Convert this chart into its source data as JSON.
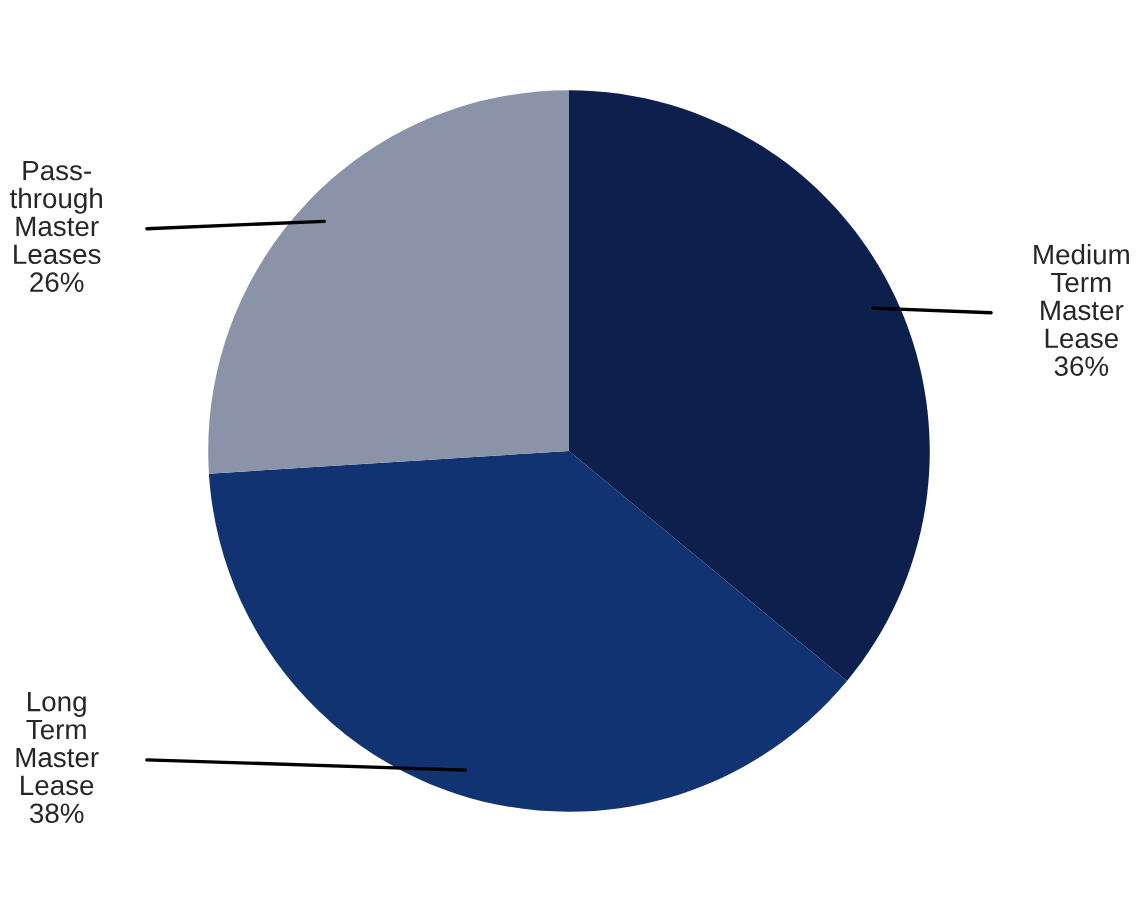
{
  "chart_data": {
    "type": "pie",
    "categories": [
      "Medium\nTerm\nMaster\nLease",
      "Long\nTerm\nMaster\nLease",
      "Pass-\nthrough\nMaster\nLeases"
    ],
    "values": [
      36,
      38,
      26
    ],
    "colors": [
      "#0c1f4d",
      "#123371",
      "#8a93a7"
    ],
    "value_labels": [
      "36%",
      "38%",
      "26%"
    ],
    "legend": false
  }
}
